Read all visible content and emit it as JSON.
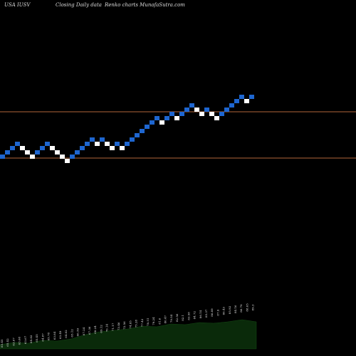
{
  "header": {
    "symbol": "USA IUSV",
    "mid": "Closing Daily data",
    "right": "Renko charts MunafaSutra.com"
  },
  "colors": {
    "background": "#000000",
    "up_brick": "#ffffff",
    "down_brick": "#1e66d0",
    "level_line": "#b2663a",
    "volume_fill": "#0a2a0a"
  },
  "chart_data": {
    "type": "renko",
    "title": "USA IUSV",
    "subtitle": "Closing Daily data Renko charts MunafaSutra.com",
    "brick_levels": [
      18,
      19,
      20,
      21,
      20,
      19,
      18,
      19,
      20,
      21,
      20,
      19,
      18,
      17,
      18,
      19,
      20,
      21,
      22,
      21,
      22,
      21,
      20,
      21,
      20,
      21,
      22,
      23,
      24,
      25,
      26,
      27,
      26,
      27,
      28,
      27,
      28,
      29,
      30,
      29,
      28,
      29,
      28,
      27,
      28,
      29,
      30,
      31,
      32,
      31,
      32
    ],
    "brick_directions": [
      "down",
      "down",
      "down",
      "down",
      "up",
      "up",
      "up",
      "down",
      "down",
      "down",
      "up",
      "up",
      "up",
      "up",
      "down",
      "down",
      "down",
      "down",
      "down",
      "up",
      "down",
      "up",
      "up",
      "down",
      "up",
      "down",
      "down",
      "down",
      "down",
      "down",
      "down",
      "down",
      "up",
      "down",
      "down",
      "up",
      "down",
      "down",
      "down",
      "up",
      "up",
      "down",
      "up",
      "up",
      "down",
      "down",
      "down",
      "down",
      "down",
      "up",
      "down"
    ],
    "volume_labels": [
      "65.45",
      "65.42",
      "63.67",
      "63.68",
      "63.67",
      "64.82",
      "65.45",
      "64.87",
      "65.78",
      "63.84",
      "63.49",
      "64.82",
      "65.12",
      "66.59",
      "67.24",
      "67.36",
      "68.24",
      "69.12",
      "70.14",
      "71.17",
      "73.46",
      "72.56",
      "74.85",
      "75.28",
      "77.42",
      "78.51",
      "79.24",
      "81.6",
      "80.47",
      "79.54",
      "82.56",
      "82.1",
      "83.58",
      "84.72",
      "86.14",
      "85.37",
      "86.89",
      "87.9",
      "86.43",
      "85.92",
      "84.16",
      "86.78",
      "88.05",
      "89.3"
    ],
    "horizontal_levels": [
      "upper",
      "lower"
    ],
    "grid": false,
    "legend": "none"
  }
}
